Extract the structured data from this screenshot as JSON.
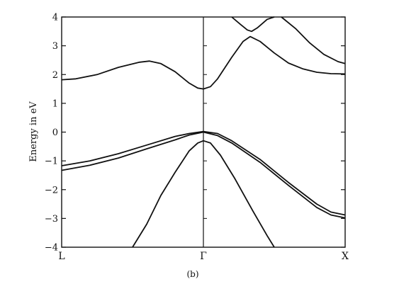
{
  "chart_data": {
    "type": "line",
    "title": "",
    "ylabel": "Energy in eV",
    "xlabel": "",
    "caption": "(b)",
    "x_tick_labels": [
      {
        "label": "L",
        "x": -1
      },
      {
        "label": "Γ",
        "x": 0
      },
      {
        "label": "X",
        "x": 1
      }
    ],
    "xlim": [
      -1,
      1
    ],
    "ylim": [
      -4,
      4
    ],
    "y_ticks": [
      -4,
      -3,
      -2,
      -1,
      0,
      1,
      2,
      3,
      4
    ],
    "vertical_line_at_x": 0,
    "grid": false,
    "series": [
      {
        "points": [
          [
            -1,
            1.82
          ],
          [
            -0.9,
            1.85
          ],
          [
            -0.75,
            2.0
          ],
          [
            -0.6,
            2.25
          ],
          [
            -0.45,
            2.43
          ],
          [
            -0.38,
            2.47
          ],
          [
            -0.3,
            2.38
          ],
          [
            -0.2,
            2.1
          ],
          [
            -0.1,
            1.7
          ],
          [
            -0.04,
            1.53
          ],
          [
            0,
            1.5
          ],
          [
            0.05,
            1.58
          ],
          [
            0.1,
            1.85
          ],
          [
            0.2,
            2.6
          ],
          [
            0.28,
            3.15
          ],
          [
            0.33,
            3.32
          ],
          [
            0.4,
            3.15
          ],
          [
            0.5,
            2.75
          ],
          [
            0.6,
            2.4
          ],
          [
            0.7,
            2.2
          ],
          [
            0.8,
            2.08
          ],
          [
            0.9,
            2.03
          ],
          [
            1,
            2.02
          ]
        ]
      },
      {
        "points": [
          [
            0.2,
            4.0
          ],
          [
            0.26,
            3.75
          ],
          [
            0.31,
            3.55
          ],
          [
            0.34,
            3.5
          ],
          [
            0.38,
            3.62
          ],
          [
            0.45,
            3.92
          ],
          [
            0.5,
            4.0
          ]
        ]
      },
      {
        "points": [
          [
            0.55,
            4.0
          ],
          [
            0.65,
            3.6
          ],
          [
            0.75,
            3.1
          ],
          [
            0.85,
            2.7
          ],
          [
            0.95,
            2.45
          ],
          [
            1,
            2.38
          ]
        ]
      },
      {
        "points": [
          [
            -1,
            -1.17
          ],
          [
            -0.8,
            -1.0
          ],
          [
            -0.6,
            -0.75
          ],
          [
            -0.4,
            -0.45
          ],
          [
            -0.2,
            -0.15
          ],
          [
            -0.1,
            -0.05
          ],
          [
            0,
            0.02
          ],
          [
            0.1,
            -0.05
          ],
          [
            0.2,
            -0.3
          ],
          [
            0.4,
            -0.95
          ],
          [
            0.6,
            -1.75
          ],
          [
            0.8,
            -2.5
          ],
          [
            0.9,
            -2.78
          ],
          [
            1,
            -2.88
          ]
        ]
      },
      {
        "points": [
          [
            -1,
            -1.33
          ],
          [
            -0.8,
            -1.15
          ],
          [
            -0.6,
            -0.9
          ],
          [
            -0.4,
            -0.58
          ],
          [
            -0.2,
            -0.27
          ],
          [
            -0.1,
            -0.1
          ],
          [
            0,
            0.0
          ],
          [
            0.1,
            -0.12
          ],
          [
            0.2,
            -0.38
          ],
          [
            0.4,
            -1.05
          ],
          [
            0.6,
            -1.85
          ],
          [
            0.8,
            -2.62
          ],
          [
            0.9,
            -2.88
          ],
          [
            1,
            -2.98
          ]
        ]
      },
      {
        "points": [
          [
            -0.5,
            -4.0
          ],
          [
            -0.4,
            -3.2
          ],
          [
            -0.3,
            -2.2
          ],
          [
            -0.2,
            -1.4
          ],
          [
            -0.1,
            -0.65
          ],
          [
            -0.04,
            -0.38
          ],
          [
            0,
            -0.3
          ],
          [
            0.05,
            -0.38
          ],
          [
            0.12,
            -0.8
          ],
          [
            0.22,
            -1.6
          ],
          [
            0.35,
            -2.75
          ],
          [
            0.45,
            -3.6
          ],
          [
            0.5,
            -4.0
          ]
        ]
      }
    ]
  }
}
